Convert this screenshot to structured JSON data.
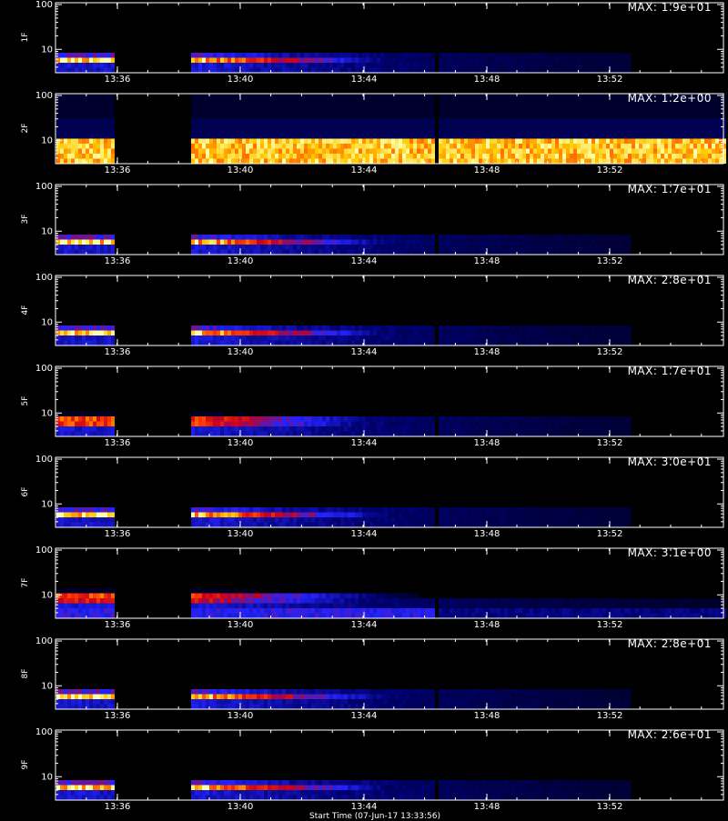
{
  "chart_data": [
    {
      "type": "heatmap",
      "ylabel": "1F",
      "max_label": "MAX: 1.9e+01",
      "ylim": [
        3,
        110
      ],
      "yscale": "log",
      "yticks": [
        10,
        100
      ],
      "xticks": [
        "13:36",
        "13:40",
        "13:44",
        "13:48",
        "13:52"
      ],
      "peak_energy": 6,
      "peak_level": 1.0,
      "low_floor": 0.0
    },
    {
      "type": "heatmap",
      "ylabel": "2F",
      "max_label": "MAX: 1.2e+00",
      "ylim": [
        3,
        110
      ],
      "yscale": "log",
      "yticks": [
        10,
        100
      ],
      "xticks": [
        "13:36",
        "13:40",
        "13:44",
        "13:48",
        "13:52"
      ],
      "peak_energy": 6,
      "peak_level": 1.0,
      "low_floor": 0.85
    },
    {
      "type": "heatmap",
      "ylabel": "3F",
      "max_label": "MAX: 1.7e+01",
      "ylim": [
        3,
        110
      ],
      "yscale": "log",
      "yticks": [
        10,
        100
      ],
      "xticks": [
        "13:36",
        "13:40",
        "13:44",
        "13:48",
        "13:52"
      ],
      "peak_energy": 6,
      "peak_level": 1.0,
      "low_floor": 0.0
    },
    {
      "type": "heatmap",
      "ylabel": "4F",
      "max_label": "MAX: 2.8e+01",
      "ylim": [
        3,
        110
      ],
      "yscale": "log",
      "yticks": [
        10,
        100
      ],
      "xticks": [
        "13:36",
        "13:40",
        "13:44",
        "13:48",
        "13:52"
      ],
      "peak_energy": 6,
      "peak_level": 1.0,
      "low_floor": 0.0
    },
    {
      "type": "heatmap",
      "ylabel": "5F",
      "max_label": "MAX: 1.7e+01",
      "ylim": [
        3,
        110
      ],
      "yscale": "log",
      "yticks": [
        10,
        100
      ],
      "xticks": [
        "13:36",
        "13:40",
        "13:44",
        "13:48",
        "13:52"
      ],
      "peak_energy": 6.5,
      "peak_level": 1.0,
      "low_floor": 0.0
    },
    {
      "type": "heatmap",
      "ylabel": "6F",
      "max_label": "MAX: 3.0e+01",
      "ylim": [
        3,
        110
      ],
      "yscale": "log",
      "yticks": [
        10,
        100
      ],
      "xticks": [
        "13:36",
        "13:40",
        "13:44",
        "13:48",
        "13:52"
      ],
      "peak_energy": 6,
      "peak_level": 1.0,
      "low_floor": 0.0
    },
    {
      "type": "heatmap",
      "ylabel": "7F",
      "max_label": "MAX: 3.1e+00",
      "ylim": [
        3,
        110
      ],
      "yscale": "log",
      "yticks": [
        10,
        100
      ],
      "xticks": [
        "13:36",
        "13:40",
        "13:44",
        "13:48",
        "13:52"
      ],
      "peak_energy": 8.5,
      "peak_level": 0.95,
      "low_floor": 0.3
    },
    {
      "type": "heatmap",
      "ylabel": "8F",
      "max_label": "MAX: 2.8e+01",
      "ylim": [
        3,
        110
      ],
      "yscale": "log",
      "yticks": [
        10,
        100
      ],
      "xticks": [
        "13:36",
        "13:40",
        "13:44",
        "13:48",
        "13:52"
      ],
      "peak_energy": 6,
      "peak_level": 1.0,
      "low_floor": 0.0
    },
    {
      "type": "heatmap",
      "ylabel": "9F",
      "max_label": "MAX: 2.6e+01",
      "ylim": [
        3,
        110
      ],
      "yscale": "log",
      "yticks": [
        10,
        100
      ],
      "xticks": [
        "13:36",
        "13:40",
        "13:44",
        "13:48",
        "13:52"
      ],
      "peak_energy": 6,
      "peak_level": 1.0,
      "low_floor": 0.0
    }
  ],
  "footer_text": "Start Time (07-Jun-17 13:33:56)"
}
